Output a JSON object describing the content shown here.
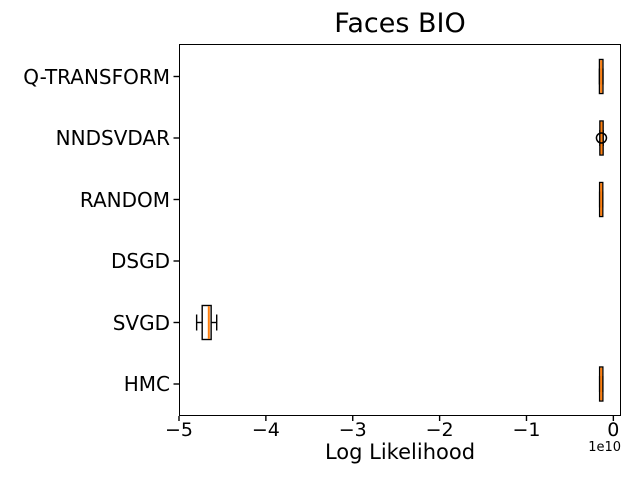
{
  "title": "Faces BIO",
  "axes": {
    "xlabel": "Log Likelihood",
    "offset_label": "1e10",
    "x_ticks": [
      {
        "label": "−5",
        "value": -5
      },
      {
        "label": "−4",
        "value": -4
      },
      {
        "label": "−3",
        "value": -3
      },
      {
        "label": "−2",
        "value": -2
      },
      {
        "label": "−1",
        "value": -1
      },
      {
        "label": "0",
        "value": 0
      }
    ]
  },
  "chart_data": {
    "type": "boxplot",
    "orientation": "horizontal",
    "title": "Faces BIO",
    "xlabel": "Log Likelihood",
    "value_unit_multiplier": "1e10",
    "xlim": [
      -5,
      0.088
    ],
    "grid": false,
    "legend": "none",
    "categories_top_to_bottom": [
      "Q-TRANSFORM",
      "NNDSVDAR",
      "RANDOM",
      "DSGD",
      "SVGD",
      "HMC"
    ],
    "boxes": [
      {
        "category": "Q-TRANSFORM",
        "empty": false,
        "whisker_lo": -0.16,
        "q1": -0.16,
        "median": -0.14,
        "q3": -0.12,
        "whisker_hi": -0.12,
        "fliers": []
      },
      {
        "category": "NNDSVDAR",
        "empty": false,
        "whisker_lo": -0.155,
        "q1": -0.155,
        "median": -0.137,
        "q3": -0.118,
        "whisker_hi": -0.118,
        "fliers": [
          -0.137
        ]
      },
      {
        "category": "RANDOM",
        "empty": false,
        "whisker_lo": -0.158,
        "q1": -0.158,
        "median": -0.14,
        "q3": -0.122,
        "whisker_hi": -0.122,
        "fliers": []
      },
      {
        "category": "DSGD",
        "empty": true,
        "whisker_lo": null,
        "q1": null,
        "median": null,
        "q3": null,
        "whisker_hi": null,
        "fliers": []
      },
      {
        "category": "SVGD",
        "empty": false,
        "whisker_lo": -4.797,
        "q1": -4.733,
        "median": -4.657,
        "q3": -4.63,
        "whisker_hi": -4.566,
        "fliers": []
      },
      {
        "category": "HMC",
        "empty": false,
        "whisker_lo": -0.158,
        "q1": -0.158,
        "median": -0.14,
        "q3": -0.121,
        "whisker_hi": -0.121,
        "fliers": []
      }
    ],
    "colors": {
      "median": "#ff7f0e",
      "box_edge": "#000000",
      "whisker": "#000000",
      "cap": "#000000",
      "flier_edge": "#000000",
      "spine": "#000000",
      "text": "#000000",
      "background": "#ffffff"
    }
  }
}
